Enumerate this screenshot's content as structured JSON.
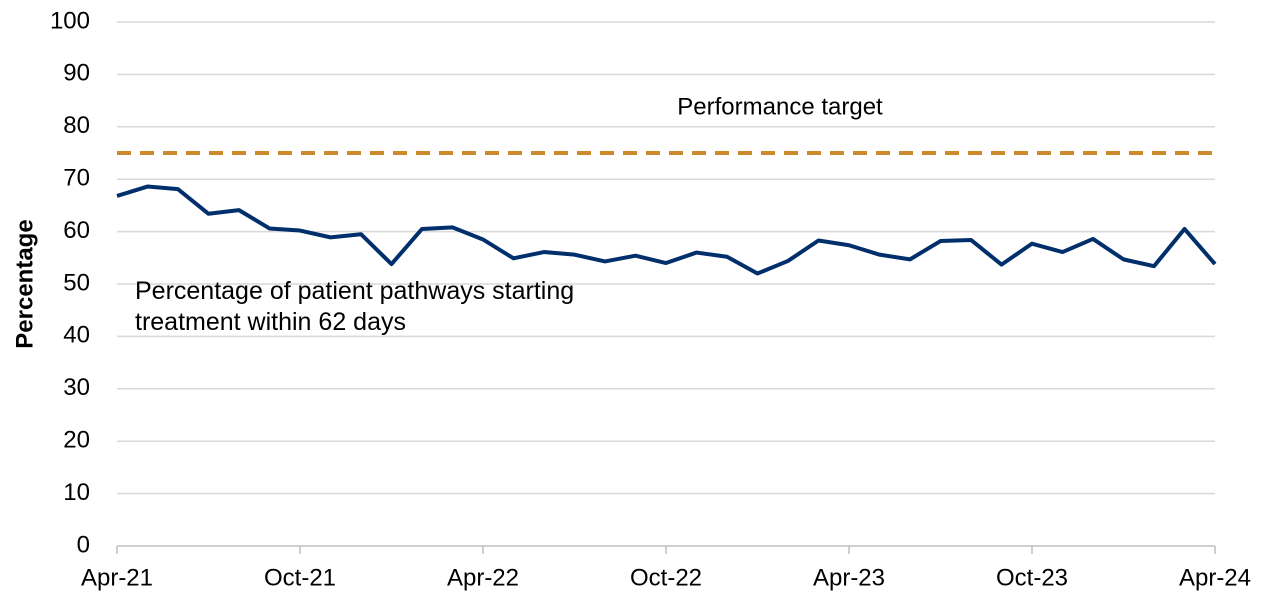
{
  "chart_data": {
    "type": "line",
    "ylabel": "Percentage",
    "categories": [
      "Apr-21",
      null,
      null,
      null,
      null,
      null,
      "Oct-21",
      null,
      null,
      null,
      null,
      null,
      "Apr-22",
      null,
      null,
      null,
      null,
      null,
      "Oct-22",
      null,
      null,
      null,
      null,
      null,
      "Apr-23",
      null,
      null,
      null,
      null,
      null,
      "Oct-23",
      null,
      null,
      null,
      null,
      null,
      "Apr-24"
    ],
    "series": [
      {
        "name": "Percentage of patient pathways starting treatment within 62 days",
        "color": "#002f6c",
        "values": [
          66.8,
          68.6,
          68.1,
          63.4,
          64.1,
          60.6,
          60.2,
          58.9,
          59.5,
          53.8,
          60.5,
          60.8,
          58.5,
          54.9,
          56.1,
          55.6,
          54.3,
          55.4,
          54.0,
          56.0,
          55.2,
          52.0,
          54.4,
          58.3,
          57.4,
          55.6,
          54.7,
          58.2,
          58.4,
          53.7,
          57.7,
          56.1,
          58.6,
          54.7,
          53.4,
          60.5,
          53.8
        ]
      }
    ],
    "target": {
      "value": 75,
      "label": "Performance target",
      "color": "#cc8a2c"
    },
    "ylim": [
      0,
      100
    ],
    "yticks": [
      0,
      10,
      20,
      30,
      40,
      50,
      60,
      70,
      80,
      90,
      100
    ],
    "grid": true
  }
}
